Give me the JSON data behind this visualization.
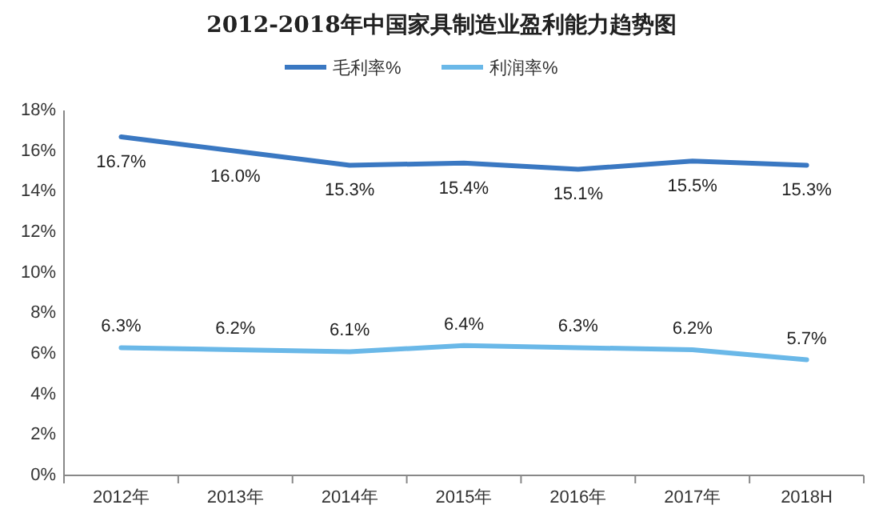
{
  "chart_data": {
    "type": "line",
    "title": "2012-2018年中国家具制造业盈利能力趋势图",
    "categories": [
      "2012年",
      "2013年",
      "2014年",
      "2015年",
      "2016年",
      "2017年",
      "2018H"
    ],
    "series": [
      {
        "name": "毛利率%",
        "color": "#3a78c2",
        "values": [
          16.7,
          16.0,
          15.3,
          15.4,
          15.1,
          15.5,
          15.3
        ],
        "value_labels": [
          "16.7%",
          "16.0%",
          "15.3%",
          "15.4%",
          "15.1%",
          "15.5%",
          "15.3%"
        ]
      },
      {
        "name": "利润率%",
        "color": "#6ab8e8",
        "values": [
          6.3,
          6.2,
          6.1,
          6.4,
          6.3,
          6.2,
          5.7
        ],
        "value_labels": [
          "6.3%",
          "6.2%",
          "6.1%",
          "6.4%",
          "6.3%",
          "6.2%",
          "5.7%"
        ]
      }
    ],
    "ylim": [
      0,
      18
    ],
    "yticks": [
      {
        "value": 0,
        "label": "0%"
      },
      {
        "value": 2,
        "label": "2%"
      },
      {
        "value": 4,
        "label": "4%"
      },
      {
        "value": 6,
        "label": "6%"
      },
      {
        "value": 8,
        "label": "8%"
      },
      {
        "value": 10,
        "label": "10%"
      },
      {
        "value": 12,
        "label": "12%"
      },
      {
        "value": 14,
        "label": "14%"
      },
      {
        "value": 16,
        "label": "16%"
      },
      {
        "value": 18,
        "label": "18%"
      }
    ],
    "legend": "top",
    "marker": "none",
    "line_style": "solid",
    "grid": false
  }
}
